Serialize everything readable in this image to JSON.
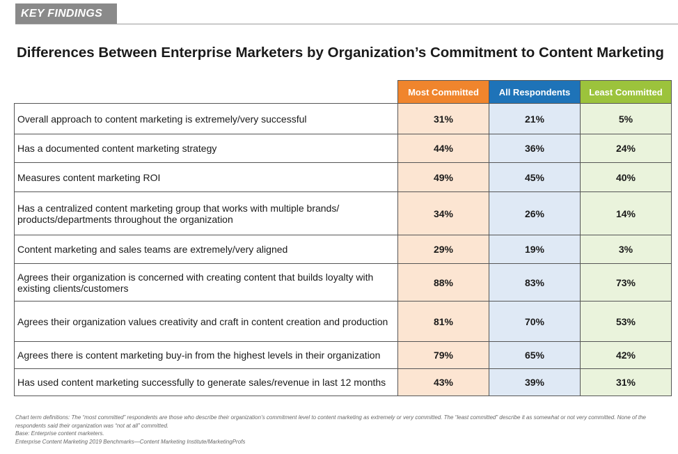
{
  "section_label": "KEY FINDINGS",
  "chart_data": {
    "type": "table",
    "title": "Differences Between Enterprise Marketers by Organization’s Commitment to Content Marketing",
    "columns": [
      "Most Committed",
      "All Respondents",
      "Least Committed"
    ],
    "column_colors": [
      "#f0852d",
      "#1e73b8",
      "#9cc33c"
    ],
    "rows": [
      {
        "label": "Overall approach to content marketing is extremely/very successful",
        "values": [
          "31%",
          "21%",
          "5%"
        ]
      },
      {
        "label": "Has a documented content marketing strategy",
        "values": [
          "44%",
          "36%",
          "24%"
        ]
      },
      {
        "label": "Measures content marketing ROI",
        "values": [
          "49%",
          "45%",
          "40%"
        ]
      },
      {
        "label": "Has a centralized content marketing group that works with multiple brands/ products/departments throughout the organization",
        "values": [
          "34%",
          "26%",
          "14%"
        ]
      },
      {
        "label": "Content marketing and sales teams are extremely/very aligned",
        "values": [
          "29%",
          "19%",
          "3%"
        ]
      },
      {
        "label": "Agrees their organization is concerned with creating content that builds loyalty with existing clients/customers",
        "values": [
          "88%",
          "83%",
          "73%"
        ]
      },
      {
        "label": "Agrees their organization values creativity and craft in content creation and production",
        "values": [
          "81%",
          "70%",
          "53%"
        ]
      },
      {
        "label": "Agrees there is content marketing buy-in from the highest levels in their organization",
        "values": [
          "79%",
          "65%",
          "42%"
        ]
      },
      {
        "label": "Has used content marketing successfully to generate sales/revenue in last 12 months",
        "values": [
          "43%",
          "39%",
          "31%"
        ]
      }
    ]
  },
  "notes": {
    "definitions": "Chart term definitions: The “most committed” respondents are those who describe their organization’s commitment level to content marketing as extremely or very committed. The “least committed” describe it as somewhat or not very committed. None of the respondents said their organization was “not at all” committed.",
    "base": "Base: Enterprise content marketers.",
    "source": "Enterprise Content Marketing 2019 Benchmarks—Content Marketing Institute/MarketingProfs"
  }
}
